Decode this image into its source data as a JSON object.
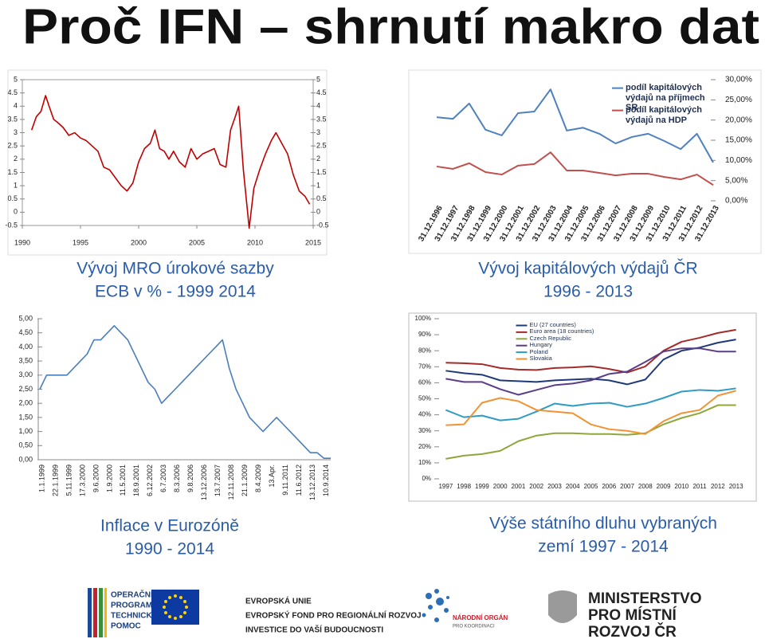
{
  "title": "Proč IFN – shrnutí makro dat",
  "chart_data": [
    {
      "type": "line",
      "title": [
        "Vývoj MRO úrokové sazby",
        "ECB v % - 1999 2014"
      ],
      "x": [
        1990.8,
        1991.2,
        1991.6,
        1992,
        1992.3,
        1992.7,
        1993,
        1993.5,
        1994,
        1994.5,
        1995,
        1995.5,
        1996,
        1996.5,
        1997,
        1997.5,
        1998,
        1998.5,
        1999,
        1999.5,
        2000,
        2000.5,
        2001,
        2001.4,
        2001.8,
        2002.2,
        2002.6,
        2003,
        2003.5,
        2004,
        2004.5,
        2005,
        2005.5,
        2006,
        2006.5,
        2007,
        2007.5,
        2007.9,
        2008.3,
        2008.6,
        2009,
        2009.5,
        2009.9,
        2010.4,
        2010.9,
        2011.4,
        2011.8,
        2012.3,
        2012.8,
        2013.3,
        2013.8,
        2014.3,
        2014.7
      ],
      "values": [
        3.1,
        3.6,
        3.8,
        4.4,
        4.0,
        3.5,
        3.4,
        3.2,
        2.9,
        3.0,
        2.8,
        2.7,
        2.5,
        2.3,
        1.7,
        1.6,
        1.3,
        1.0,
        0.8,
        1.1,
        1.9,
        2.4,
        2.6,
        3.1,
        2.4,
        2.3,
        2.0,
        2.3,
        1.9,
        1.7,
        2.4,
        2.0,
        2.2,
        2.3,
        2.4,
        1.8,
        1.7,
        3.1,
        3.6,
        4.0,
        1.6,
        -0.6,
        0.9,
        1.6,
        2.2,
        2.7,
        3.0,
        2.6,
        2.2,
        1.4,
        0.8,
        0.6,
        0.3
      ],
      "color": "#c00000",
      "xlim": [
        1990,
        2015
      ],
      "xticks": [
        1990,
        1995,
        2000,
        2005,
        2010,
        2015
      ],
      "ylim": [
        -0.5,
        5
      ],
      "yticks": [
        -0.5,
        0,
        0.5,
        1,
        1.5,
        2,
        2.5,
        3,
        3.5,
        4,
        4.5,
        5
      ],
      "y2lim": [
        -0.5,
        5
      ],
      "y2ticks": [
        -0.5,
        0,
        0.5,
        1,
        1.5,
        2,
        2.5,
        3,
        3.5,
        4,
        4.5,
        5
      ]
    },
    {
      "type": "line",
      "title": [
        "Vývoj kapitálových výdajů ČR",
        "1996 - 2013"
      ],
      "categories": [
        "31.12.1996",
        "31.12.1997",
        "31.12.1998",
        "31.12.1999",
        "31.12.2000",
        "31.12.2001",
        "31.12.2002",
        "31.12.2003",
        "31.12.2004",
        "31.12.2005",
        "31.12.2006",
        "31.12.2007",
        "31.12.2008",
        "31.12.2009",
        "31.12.2010",
        "31.12.2011",
        "31.12.2012",
        "31.12.2013"
      ],
      "series": [
        {
          "name": "podíl kapitálových výdajů na příjmech SR",
          "color": "#4f81bd",
          "values": [
            20.7,
            20.3,
            24.1,
            17.6,
            16.2,
            21.7,
            22.1,
            27.6,
            17.4,
            18.1,
            16.6,
            14.2,
            15.8,
            16.6,
            14.8,
            12.8,
            16.6,
            9.5
          ]
        },
        {
          "name": "podíl kapitálových výdajů na HDP",
          "color": "#c0504d",
          "values": [
            8.5,
            7.9,
            9.3,
            7.1,
            6.5,
            8.7,
            9.1,
            12.0,
            7.5,
            7.5,
            6.9,
            6.3,
            6.7,
            6.7,
            5.9,
            5.3,
            6.5,
            3.9
          ]
        }
      ],
      "legend": "upper right",
      "ylim": [
        0,
        30
      ],
      "yticks": [
        {
          "value": 0,
          "label": "0,00%"
        },
        {
          "value": 5,
          "label": "5,00%"
        },
        {
          "value": 10,
          "label": "10,00%"
        },
        {
          "value": 15,
          "label": "15,00%"
        },
        {
          "value": 20,
          "label": "20,00%"
        },
        {
          "value": 25,
          "label": "25,00%"
        },
        {
          "value": 30,
          "label": "30,00%"
        }
      ]
    },
    {
      "type": "line",
      "title": [
        "Inflace v Eurozóně",
        "1990 - 2014"
      ],
      "categories": [
        "1.1.1999",
        null,
        "22.1.1999",
        null,
        "5.11.1999",
        null,
        "17.3.2000",
        null,
        "9.6.2000",
        null,
        "1.9.2000",
        null,
        "11.5.2001",
        null,
        "18.9.2001",
        null,
        "6.12.2002",
        null,
        "6.7.2003",
        null,
        "8.3.2006",
        null,
        "9.8.2006",
        null,
        "13.12.2006",
        null,
        "13.7.2007",
        null,
        "12.11.2008",
        null,
        "21.1.2009",
        null,
        "8.4.2009",
        null,
        "13.Apr.",
        null,
        "9.11.2011",
        null,
        "11.6.2012",
        null,
        "13.12.2013",
        null,
        "10.9.2014",
        null
      ],
      "values": [
        2.5,
        3.0,
        3.0,
        3.0,
        3.0,
        3.25,
        3.5,
        3.75,
        4.25,
        4.25,
        4.5,
        4.75,
        4.5,
        4.25,
        3.75,
        3.25,
        2.75,
        2.5,
        2.0,
        2.25,
        2.5,
        2.75,
        3.0,
        3.25,
        3.5,
        3.75,
        4.0,
        4.25,
        3.25,
        2.5,
        2.0,
        1.5,
        1.25,
        1.0,
        1.25,
        1.5,
        1.25,
        1.0,
        0.75,
        0.5,
        0.25,
        0.25,
        0.05,
        0.05
      ],
      "color": "#4a7ebb",
      "ylim": [
        0,
        5
      ],
      "yticks": [
        {
          "value": 0,
          "label": "0,00"
        },
        {
          "value": 0.5,
          "label": "0,50"
        },
        {
          "value": 1,
          "label": "1,00"
        },
        {
          "value": 1.5,
          "label": "1,50"
        },
        {
          "value": 2,
          "label": "2,00"
        },
        {
          "value": 2.5,
          "label": "2,50"
        },
        {
          "value": 3,
          "label": "3,00"
        },
        {
          "value": 3.5,
          "label": "3,50"
        },
        {
          "value": 4,
          "label": "4,00"
        },
        {
          "value": 4.5,
          "label": "4,50"
        },
        {
          "value": 5,
          "label": "5,00"
        }
      ]
    },
    {
      "type": "line",
      "title": [
        "Výše státního dluhu vybraných",
        "zemí 1997 - 2014"
      ],
      "categories": [
        "1997",
        "1998",
        "1999",
        "2000",
        "2001",
        "2002",
        "2003",
        "2004",
        "2005",
        "2006",
        "2007",
        "2008",
        "2009",
        "2010",
        "2011",
        "2012",
        "2013"
      ],
      "series": [
        {
          "name": "EU (27 countries)",
          "color": "#1f3a78",
          "values": [
            67.5,
            66,
            65,
            61.5,
            61,
            60.5,
            61.5,
            62,
            62.5,
            61.5,
            59,
            62,
            74.5,
            80,
            82,
            85,
            87
          ]
        },
        {
          "name": "Euro area (18 countries)",
          "color": "#a52a2a",
          "values": [
            72.5,
            72.2,
            71.6,
            69.2,
            68.2,
            68.0,
            69.2,
            69.6,
            70.3,
            68.6,
            66.4,
            70.2,
            80.0,
            85.6,
            88.1,
            91.1,
            93.1
          ]
        },
        {
          "name": "Czech Republic",
          "color": "#8ea73b",
          "values": [
            12.5,
            14.5,
            15.5,
            17.5,
            23.5,
            27,
            28.5,
            28.5,
            28,
            28,
            27.5,
            28.5,
            34,
            38,
            41,
            46,
            46
          ]
        },
        {
          "name": "Hungary",
          "color": "#5b3c88",
          "values": [
            62.5,
            60.5,
            60.5,
            56,
            52.5,
            55.5,
            58.5,
            59.5,
            61.5,
            65.5,
            67,
            73,
            79.5,
            81.5,
            81.5,
            79.5,
            79.5
          ]
        },
        {
          "name": "Poland",
          "color": "#2e9bc4",
          "values": [
            43,
            38.5,
            39.5,
            36.5,
            37.5,
            42,
            47,
            45.5,
            47,
            47.5,
            45,
            47,
            50.5,
            54.5,
            55.5,
            55,
            56.5
          ]
        },
        {
          "name": "Slovakia",
          "color": "#f39233",
          "values": [
            33.5,
            34,
            47.5,
            50.5,
            48.5,
            43,
            42,
            41,
            34,
            31,
            30,
            28,
            36,
            41,
            43,
            52,
            55
          ]
        }
      ],
      "legend": "upper center",
      "ylim": [
        0,
        100
      ],
      "yticks": [
        {
          "value": 0,
          "label": "0%"
        },
        {
          "value": 10,
          "label": "10%"
        },
        {
          "value": 20,
          "label": "20%"
        },
        {
          "value": 30,
          "label": "30%"
        },
        {
          "value": 40,
          "label": "40%"
        },
        {
          "value": 50,
          "label": "50%"
        },
        {
          "value": 60,
          "label": "60%"
        },
        {
          "value": 70,
          "label": "70%"
        },
        {
          "value": 80,
          "label": "80%"
        },
        {
          "value": 90,
          "label": "90%"
        },
        {
          "value": 100,
          "label": "100%"
        }
      ]
    }
  ],
  "footer": {
    "optp": [
      "OPERAČNÍ",
      "PROGRAM",
      "TECHNICKÁ",
      "POMOC"
    ],
    "eu": [
      "EVROPSKÁ UNIE",
      "EVROPSKÝ FOND PRO REGIONÁLNÍ ROZVOJ",
      "INVESTICE DO VAŠÍ BUDOUCNOSTI"
    ],
    "nok": [
      "NÁRODNÍ ORGÁN",
      "PRO KOORDINACI"
    ],
    "mmr": [
      "MINISTERSTVO",
      "PRO MÍSTNÍ",
      "ROZVOJ ČR"
    ]
  }
}
